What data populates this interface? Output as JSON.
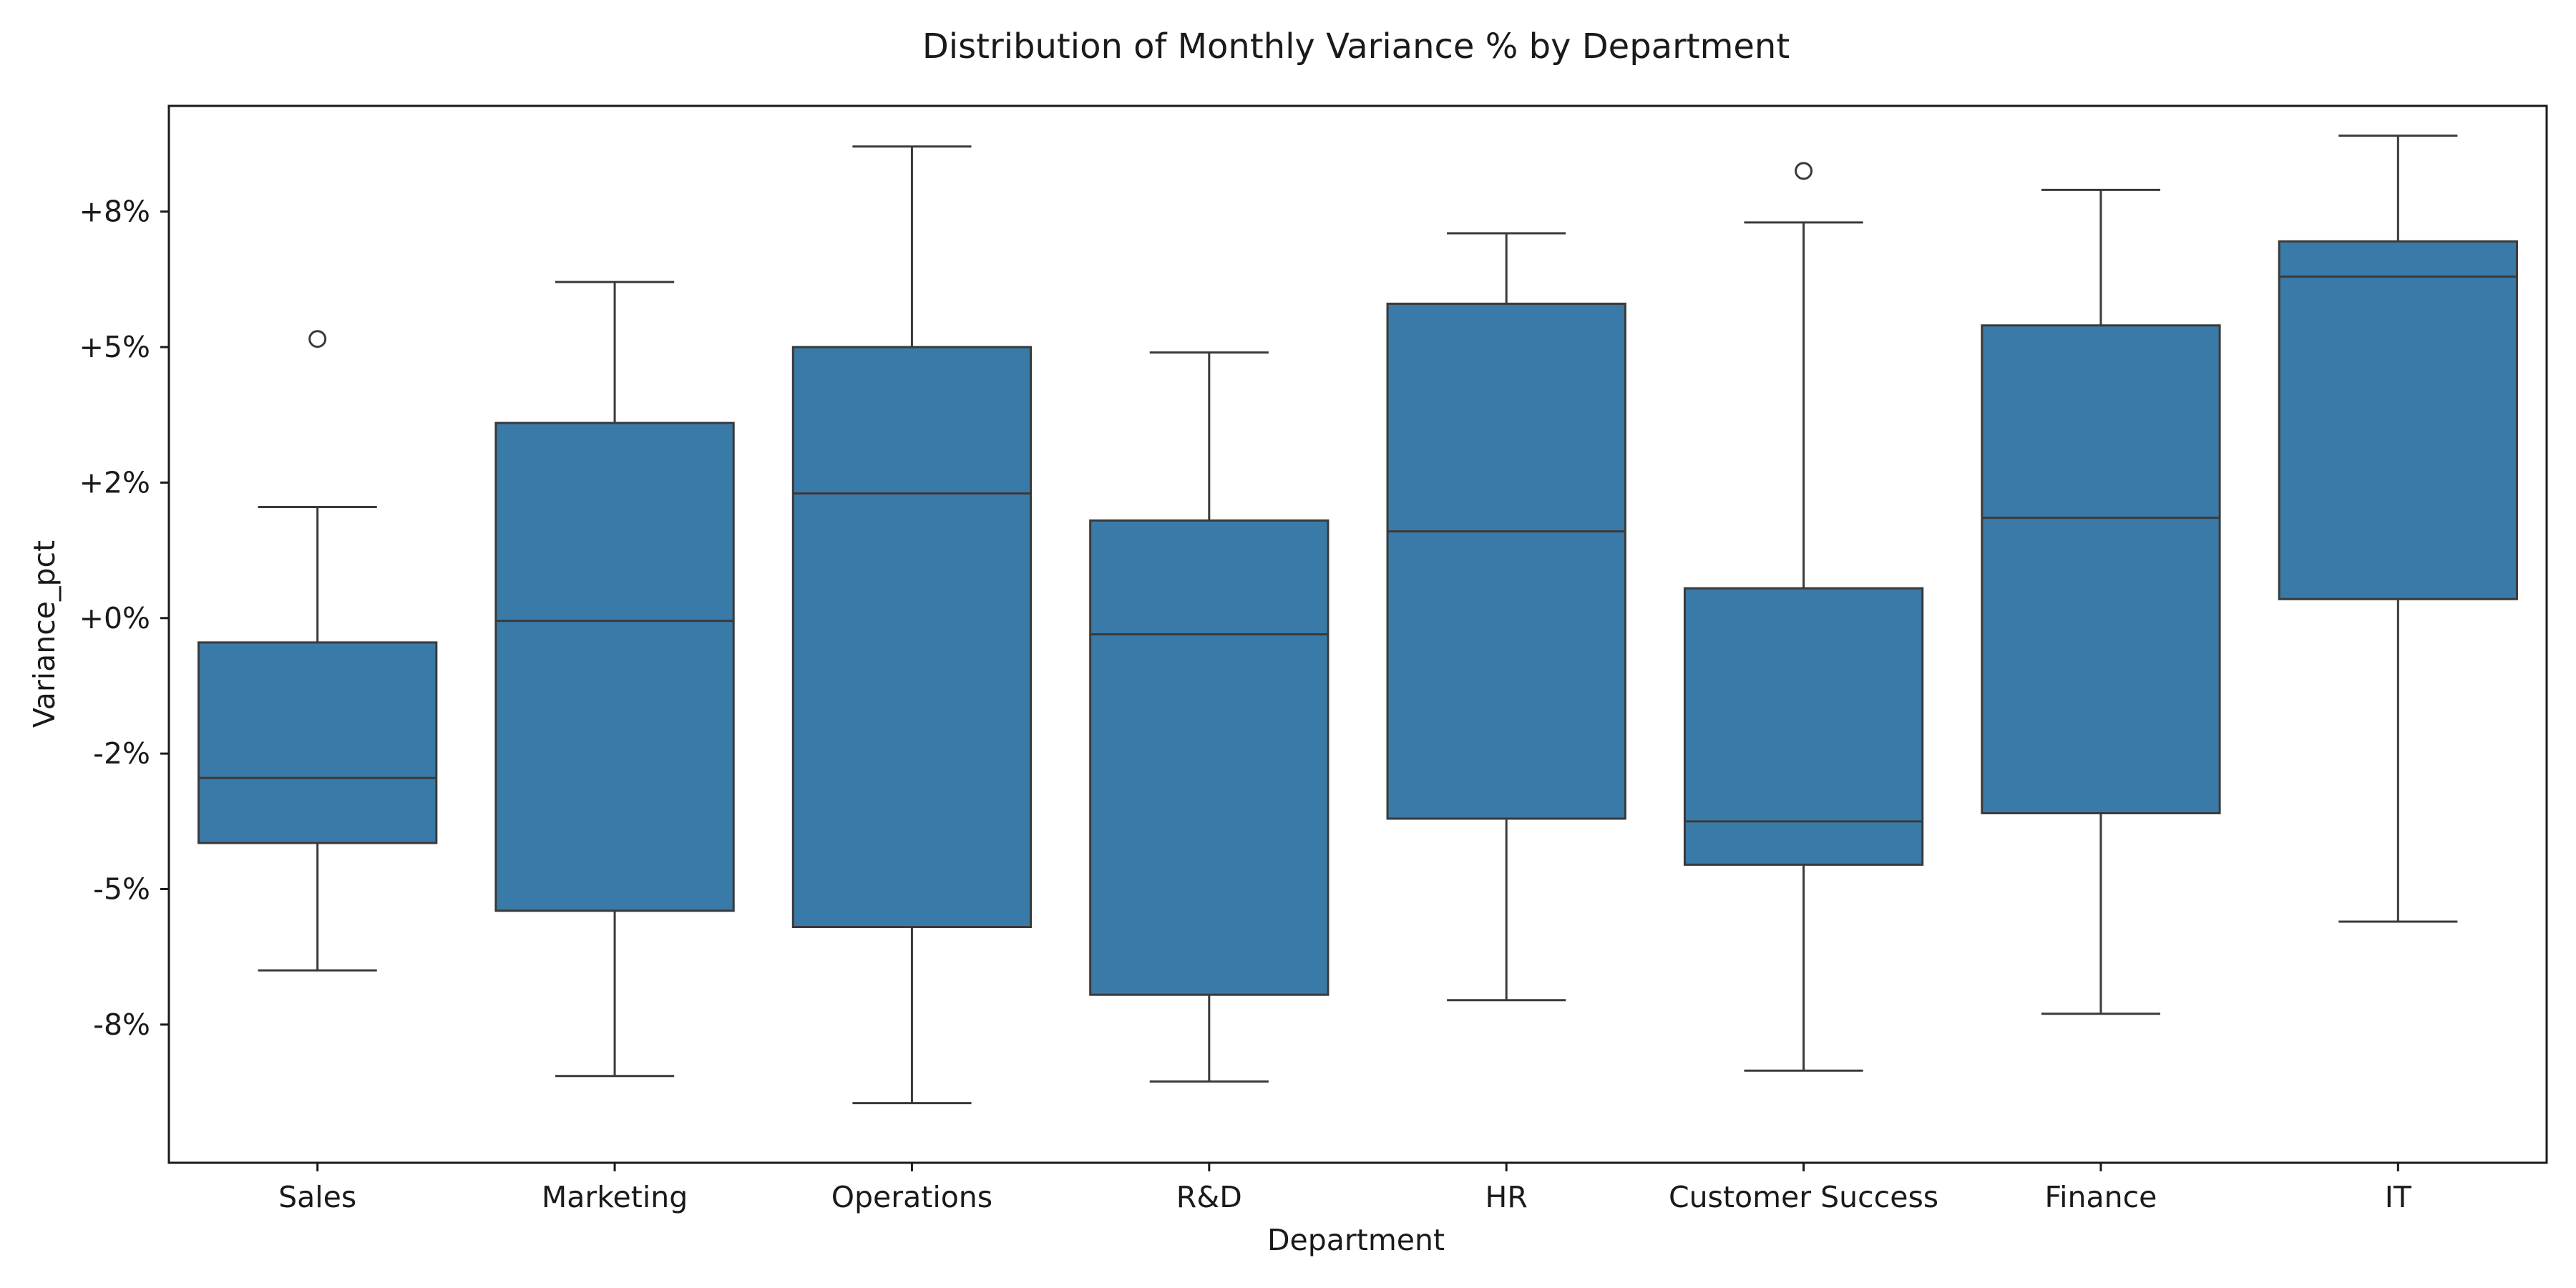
{
  "chart_data": {
    "type": "box",
    "title": "Distribution of Monthly Variance % by Department",
    "xlabel": "Department",
    "ylabel": "Variance_pct",
    "ylim": [
      -10.05,
      9.45
    ],
    "yticks": [
      {
        "value": -7.5,
        "label": "-8%"
      },
      {
        "value": -5.0,
        "label": "-5%"
      },
      {
        "value": -2.5,
        "label": "-2%"
      },
      {
        "value": 0.0,
        "label": "+0%"
      },
      {
        "value": 2.5,
        "label": "+2%"
      },
      {
        "value": 5.0,
        "label": "+5%"
      },
      {
        "value": 7.5,
        "label": "+8%"
      }
    ],
    "grid": false,
    "box_color": "#3a7aa8",
    "line_color": "#3a3a3a",
    "categories": [
      "Sales",
      "Marketing",
      "Operations",
      "R&D",
      "HR",
      "Customer Success",
      "Finance",
      "IT"
    ],
    "boxes": [
      {
        "whisker_low": -6.5,
        "q1": -4.15,
        "median": -2.95,
        "q3": -0.45,
        "whisker_high": 2.05,
        "outliers": [
          5.15
        ]
      },
      {
        "whisker_low": -8.45,
        "q1": -5.4,
        "median": -0.05,
        "q3": 3.6,
        "whisker_high": 6.2,
        "outliers": []
      },
      {
        "whisker_low": -8.95,
        "q1": -5.7,
        "median": 2.3,
        "q3": 5.0,
        "whisker_high": 8.7,
        "outliers": []
      },
      {
        "whisker_low": -8.55,
        "q1": -6.95,
        "median": -0.3,
        "q3": 1.8,
        "whisker_high": 4.9,
        "outliers": []
      },
      {
        "whisker_low": -7.05,
        "q1": -3.7,
        "median": 1.6,
        "q3": 5.8,
        "whisker_high": 7.1,
        "outliers": []
      },
      {
        "whisker_low": -8.35,
        "q1": -4.55,
        "median": -3.75,
        "q3": 0.55,
        "whisker_high": 7.3,
        "outliers": [
          8.25
        ]
      },
      {
        "whisker_low": -7.3,
        "q1": -3.6,
        "median": 1.85,
        "q3": 5.4,
        "whisker_high": 7.9,
        "outliers": []
      },
      {
        "whisker_low": -5.6,
        "q1": 0.35,
        "median": 6.3,
        "q3": 6.95,
        "whisker_high": 8.9,
        "outliers": []
      }
    ]
  }
}
